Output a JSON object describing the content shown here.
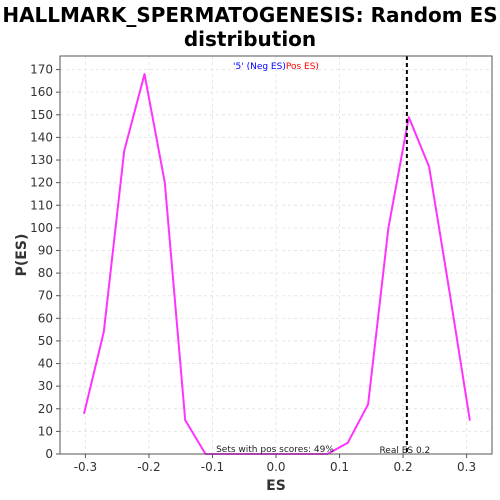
{
  "chart_data": {
    "type": "line",
    "title_line1": "HALLMARK_SPERMATOGENESIS: Random ES",
    "title_line2": "distribution",
    "xlabel": "ES",
    "ylabel": "P(ES)",
    "xlim": [
      -0.34,
      0.34
    ],
    "ylim": [
      0,
      176
    ],
    "xticks": [
      -0.3,
      -0.2,
      -0.1,
      0.0,
      0.1,
      0.2,
      0.3
    ],
    "xtick_labels": [
      "-0.3",
      "-0.2",
      "-0.1",
      "0.0",
      "0.1",
      "0.2",
      "0.3"
    ],
    "yticks": [
      0,
      10,
      20,
      30,
      40,
      50,
      60,
      70,
      80,
      90,
      100,
      110,
      120,
      130,
      140,
      150,
      160,
      170
    ],
    "ytick_labels": [
      "0",
      "10",
      "20",
      "30",
      "40",
      "50",
      "60",
      "70",
      "80",
      "90",
      "100",
      "110",
      "120",
      "130",
      "140",
      "150",
      "160",
      "170"
    ],
    "grid": true,
    "legend": {
      "placement": "top-center",
      "neg_label": "'5' (Neg ES)",
      "pos_label": "Pos ES)",
      "neg_color": "#0000ff",
      "pos_color": "#ff0000"
    },
    "series": [
      {
        "color": "#ff33ff",
        "x": [
          -0.302,
          -0.271,
          -0.239,
          -0.207,
          -0.175,
          -0.143,
          -0.111,
          -0.079,
          -0.047,
          -0.015,
          0.017,
          0.049,
          0.081,
          0.113,
          0.145,
          0.177,
          0.209,
          0.241,
          0.273,
          0.305
        ],
        "y": [
          18,
          54,
          134,
          168,
          120,
          15,
          0,
          0,
          0,
          0,
          0,
          0,
          0,
          5,
          22,
          100,
          149,
          127,
          72,
          15
        ]
      }
    ],
    "real_es": {
      "value": 0.206,
      "label": "Real ES 0.2",
      "color": "#000000"
    },
    "annotation": "Sets with pos scores: 49%"
  }
}
